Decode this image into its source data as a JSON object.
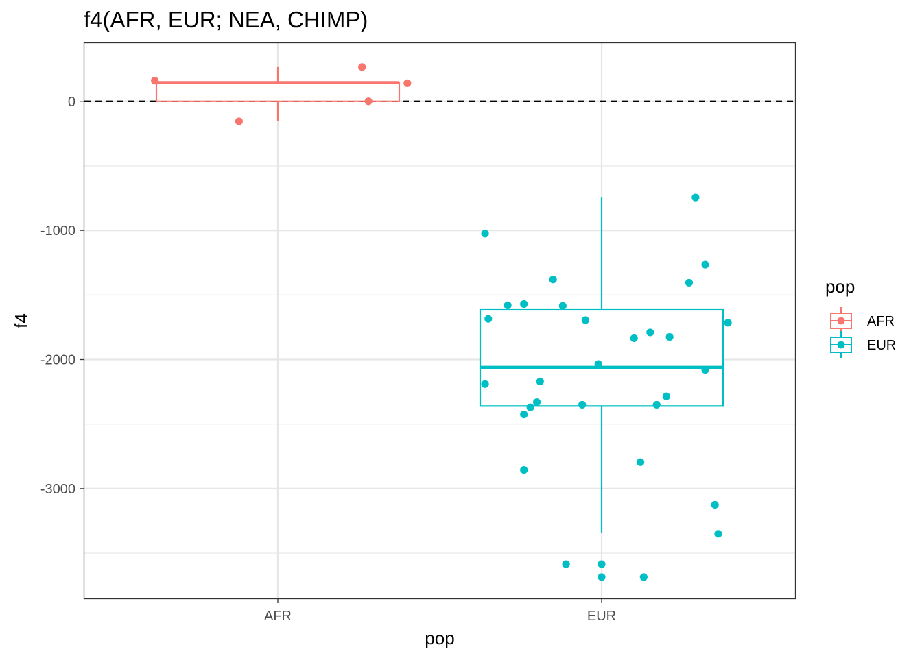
{
  "chart_data": {
    "type": "box",
    "title": "f4(AFR, EUR; NEA, CHIMP)",
    "xlabel": "pop",
    "ylabel": "f4",
    "categories": [
      "AFR",
      "EUR"
    ],
    "ylim": [
      -3850,
      450
    ],
    "yticks": [
      0,
      -1000,
      -2000,
      -3000
    ],
    "y_minor_ticks": [
      -500,
      -1500,
      -2500,
      -3500
    ],
    "reference_line": {
      "y": 0,
      "style": "dashed",
      "color": "#000000"
    },
    "legend": {
      "title": "pop",
      "position": "right",
      "entries": [
        "AFR",
        "EUR"
      ]
    },
    "grid": true,
    "series": [
      {
        "name": "AFR",
        "color": "#F8766D",
        "box": {
          "whisker_low": -155,
          "q1": 0,
          "median": 145,
          "q3": 145,
          "whisker_high": 265
        },
        "points": [
          {
            "jitter": -0.38,
            "y": 160
          },
          {
            "jitter": -0.12,
            "y": -155
          },
          {
            "jitter": 0.26,
            "y": 265
          },
          {
            "jitter": 0.28,
            "y": 0
          },
          {
            "jitter": 0.4,
            "y": 140
          }
        ]
      },
      {
        "name": "EUR",
        "color": "#00BFC4",
        "box": {
          "whisker_low": -3340,
          "q1": -2360,
          "median": -2060,
          "q3": -1615,
          "whisker_high": -745
        },
        "points": [
          {
            "jitter": 0.29,
            "y": -745
          },
          {
            "jitter": -0.36,
            "y": -1025
          },
          {
            "jitter": 0.32,
            "y": -1265
          },
          {
            "jitter": -0.15,
            "y": -1380
          },
          {
            "jitter": 0.27,
            "y": -1405
          },
          {
            "jitter": -0.29,
            "y": -1580
          },
          {
            "jitter": -0.24,
            "y": -1570
          },
          {
            "jitter": -0.12,
            "y": -1585
          },
          {
            "jitter": -0.35,
            "y": -1685
          },
          {
            "jitter": -0.05,
            "y": -1695
          },
          {
            "jitter": 0.39,
            "y": -1715
          },
          {
            "jitter": 0.15,
            "y": -1790
          },
          {
            "jitter": 0.1,
            "y": -1835
          },
          {
            "jitter": 0.21,
            "y": -1825
          },
          {
            "jitter": -0.01,
            "y": -2035
          },
          {
            "jitter": 0.32,
            "y": -2080
          },
          {
            "jitter": -0.36,
            "y": -2190
          },
          {
            "jitter": -0.19,
            "y": -2170
          },
          {
            "jitter": 0.2,
            "y": -2285
          },
          {
            "jitter": -0.2,
            "y": -2330
          },
          {
            "jitter": -0.22,
            "y": -2370
          },
          {
            "jitter": -0.06,
            "y": -2350
          },
          {
            "jitter": 0.17,
            "y": -2350
          },
          {
            "jitter": -0.24,
            "y": -2425
          },
          {
            "jitter": 0.12,
            "y": -2795
          },
          {
            "jitter": -0.24,
            "y": -2855
          },
          {
            "jitter": 0.35,
            "y": -3125
          },
          {
            "jitter": 0.36,
            "y": -3350
          },
          {
            "jitter": -0.11,
            "y": -3585
          },
          {
            "jitter": 0.0,
            "y": -3585
          },
          {
            "jitter": 0.0,
            "y": -3685
          },
          {
            "jitter": 0.13,
            "y": -3685
          }
        ]
      }
    ]
  }
}
